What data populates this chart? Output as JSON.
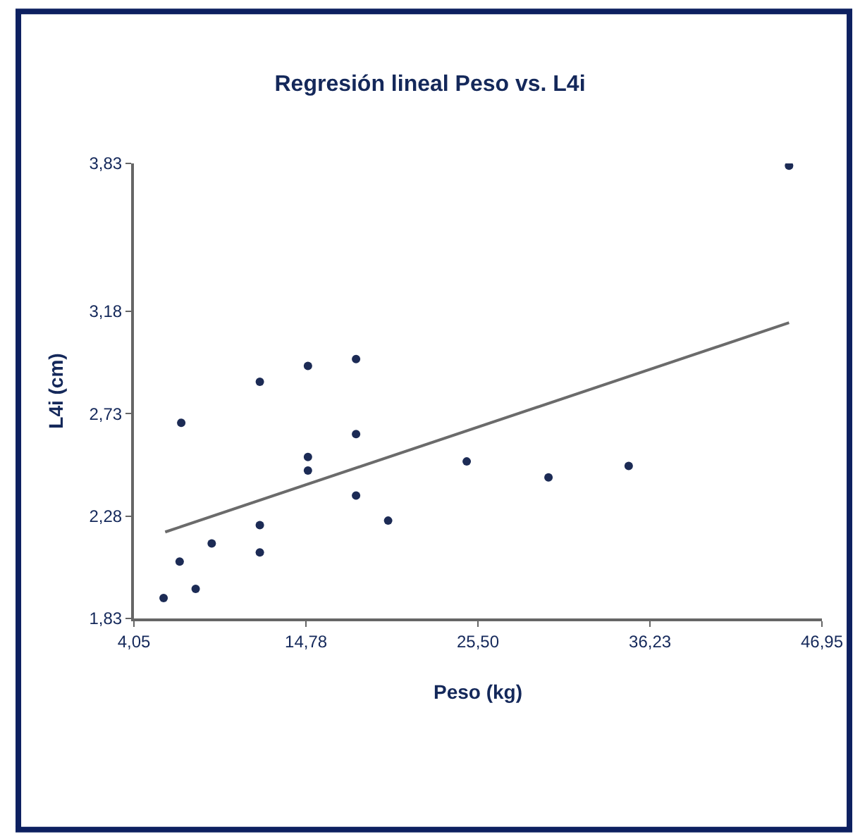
{
  "chart_data": {
    "type": "scatter",
    "title": "Regresión lineal Peso vs. L4i",
    "xlabel": "Peso (kg)",
    "ylabel": "L4i (cm)",
    "xlim": [
      4.05,
      46.95
    ],
    "xticks": [
      {
        "value": 4.05,
        "label": "4,05"
      },
      {
        "value": 14.78,
        "label": "14,78"
      },
      {
        "value": 25.5,
        "label": "25,50"
      },
      {
        "value": 36.23,
        "label": "36,23"
      },
      {
        "value": 46.95,
        "label": "46,95"
      }
    ],
    "ylim": [
      1.83,
      3.83
    ],
    "yticks": [
      {
        "value": 1.83,
        "label": "1,83"
      },
      {
        "value": 2.28,
        "label": "2,28"
      },
      {
        "value": 2.73,
        "label": "2,73"
      },
      {
        "value": 3.18,
        "label": "3,18"
      },
      {
        "value": 3.83,
        "label": "3,83"
      }
    ],
    "grid": false,
    "legend": false,
    "series": [
      {
        "marker": "circle",
        "color": "#1c2b55",
        "x": [
          5.9,
          6.9,
          7.0,
          7.9,
          8.9,
          11.9,
          11.9,
          11.9,
          14.9,
          14.9,
          14.9,
          17.9,
          17.9,
          17.9,
          19.9,
          24.8,
          29.9,
          34.9,
          44.9
        ],
        "values": [
          1.92,
          2.08,
          2.69,
          1.96,
          2.16,
          2.24,
          2.12,
          2.87,
          2.94,
          2.54,
          2.48,
          2.97,
          2.64,
          2.37,
          2.26,
          2.52,
          2.45,
          2.5,
          3.82
        ]
      },
      {
        "type": "line",
        "color": "#6b6b6b",
        "x": [
          6.0,
          44.9
        ],
        "values": [
          2.21,
          3.13
        ]
      }
    ]
  }
}
